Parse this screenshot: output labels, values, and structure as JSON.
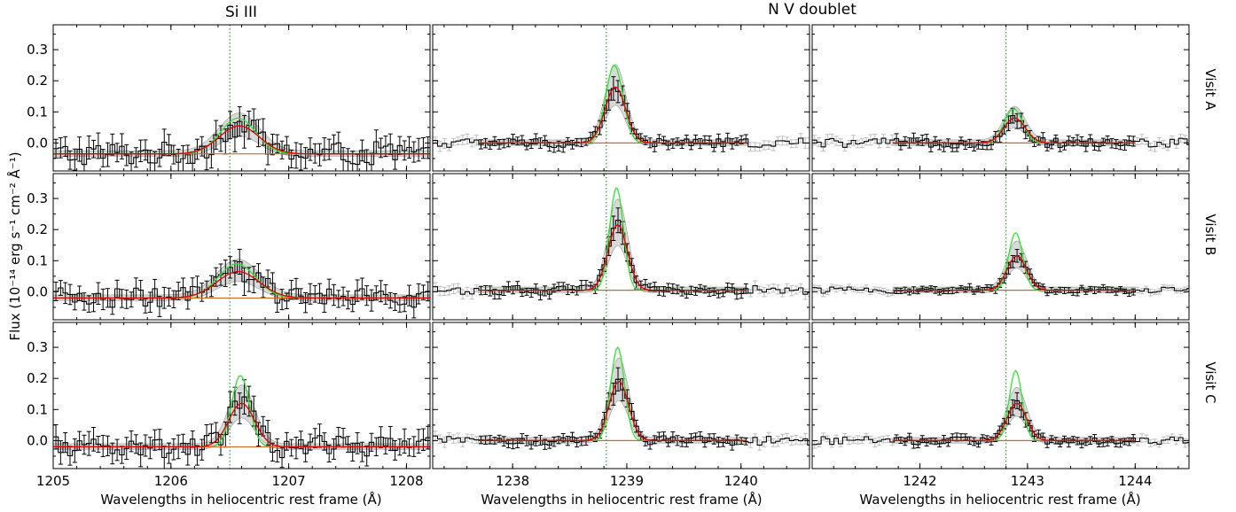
{
  "figure": {
    "titles": {
      "si": "Si III",
      "nv": "N V doublet"
    },
    "ylabel": "Flux (10⁻¹⁴ erg s⁻¹ cm⁻² Å⁻¹)",
    "xlabel": "Wavelengths in heliocentric rest frame (Å)",
    "row_labels": [
      "Visit A",
      "Visit B",
      "Visit C"
    ]
  },
  "chart_data": {
    "type": "line",
    "ylim": [
      -0.09,
      0.38
    ],
    "yticks": [
      0.0,
      0.1,
      0.2,
      0.3
    ],
    "ytick_labels": [
      "0.0",
      "0.1",
      "0.2",
      "0.3"
    ],
    "grid": false,
    "series_styles": {
      "observed": "#000000",
      "excluded": "#bfbfbf",
      "intrinsic": "#2ee62e",
      "model": "#e00000",
      "continuum": "#d2691e",
      "band": "#d0d0d0",
      "rest_line": "#2e9e2e"
    },
    "columns": [
      {
        "line": "Si III",
        "xlim": [
          1205.0,
          1208.2
        ],
        "xticks": [
          1205,
          1206,
          1207,
          1208
        ],
        "xtick_labels": [
          "1205",
          "1206",
          "1207",
          "1208"
        ],
        "rest_wavelength": 1206.5,
        "fit_range": [
          1205.0,
          1208.2
        ],
        "bin": 0.04
      },
      {
        "line": "N V 1238.8",
        "xlim": [
          1237.3,
          1240.6
        ],
        "xticks": [
          1238,
          1239,
          1240
        ],
        "xtick_labels": [
          "1238",
          "1239",
          "1240"
        ],
        "rest_wavelength": 1238.82,
        "fit_range": [
          1237.7,
          1240.05
        ],
        "bin": 0.04
      },
      {
        "line": "N V 1242.8",
        "xlim": [
          1241.0,
          1244.5
        ],
        "xticks": [
          1242,
          1243,
          1244
        ],
        "xtick_labels": [
          "1242",
          "1243",
          "1244"
        ],
        "rest_wavelength": 1242.8,
        "fit_range": [
          1241.75,
          1244.0
        ],
        "bin": 0.04
      }
    ],
    "panels": [
      {
        "row": "Visit A",
        "col": 0,
        "baseline": -0.035,
        "center": 1206.58,
        "peak": 0.09,
        "sigma": 0.17,
        "intrinsic_peak": 0.115,
        "intrinsic_sigma": 0.15,
        "noise": 0.03
      },
      {
        "row": "Visit A",
        "col": 1,
        "baseline": 0.0,
        "center": 1238.9,
        "peak": 0.18,
        "sigma": 0.09,
        "intrinsic_peak": 0.25,
        "intrinsic_sigma": 0.075,
        "noise": 0.012
      },
      {
        "row": "Visit A",
        "col": 2,
        "baseline": 0.0,
        "center": 1242.88,
        "peak": 0.08,
        "sigma": 0.1,
        "intrinsic_peak": 0.11,
        "intrinsic_sigma": 0.085,
        "noise": 0.012
      },
      {
        "row": "Visit B",
        "col": 0,
        "baseline": -0.02,
        "center": 1206.57,
        "peak": 0.085,
        "sigma": 0.18,
        "intrinsic_peak": 0.11,
        "intrinsic_sigma": 0.16,
        "noise": 0.025
      },
      {
        "row": "Visit B",
        "col": 1,
        "baseline": 0.005,
        "center": 1238.92,
        "peak": 0.21,
        "sigma": 0.085,
        "intrinsic_peak": 0.33,
        "intrinsic_sigma": 0.06,
        "noise": 0.012
      },
      {
        "row": "Visit B",
        "col": 2,
        "baseline": 0.005,
        "center": 1242.9,
        "peak": 0.11,
        "sigma": 0.09,
        "intrinsic_peak": 0.185,
        "intrinsic_sigma": 0.065,
        "noise": 0.008
      },
      {
        "row": "Visit C",
        "col": 0,
        "baseline": -0.02,
        "center": 1206.6,
        "peak": 0.14,
        "sigma": 0.11,
        "intrinsic_peak": 0.23,
        "intrinsic_sigma": 0.075,
        "noise": 0.028
      },
      {
        "row": "Visit C",
        "col": 1,
        "baseline": 0.0,
        "center": 1238.93,
        "peak": 0.19,
        "sigma": 0.085,
        "intrinsic_peak": 0.3,
        "intrinsic_sigma": 0.06,
        "noise": 0.012
      },
      {
        "row": "Visit C",
        "col": 2,
        "baseline": 0.0,
        "center": 1242.9,
        "peak": 0.12,
        "sigma": 0.09,
        "intrinsic_peak": 0.225,
        "intrinsic_sigma": 0.06,
        "noise": 0.01
      }
    ]
  }
}
